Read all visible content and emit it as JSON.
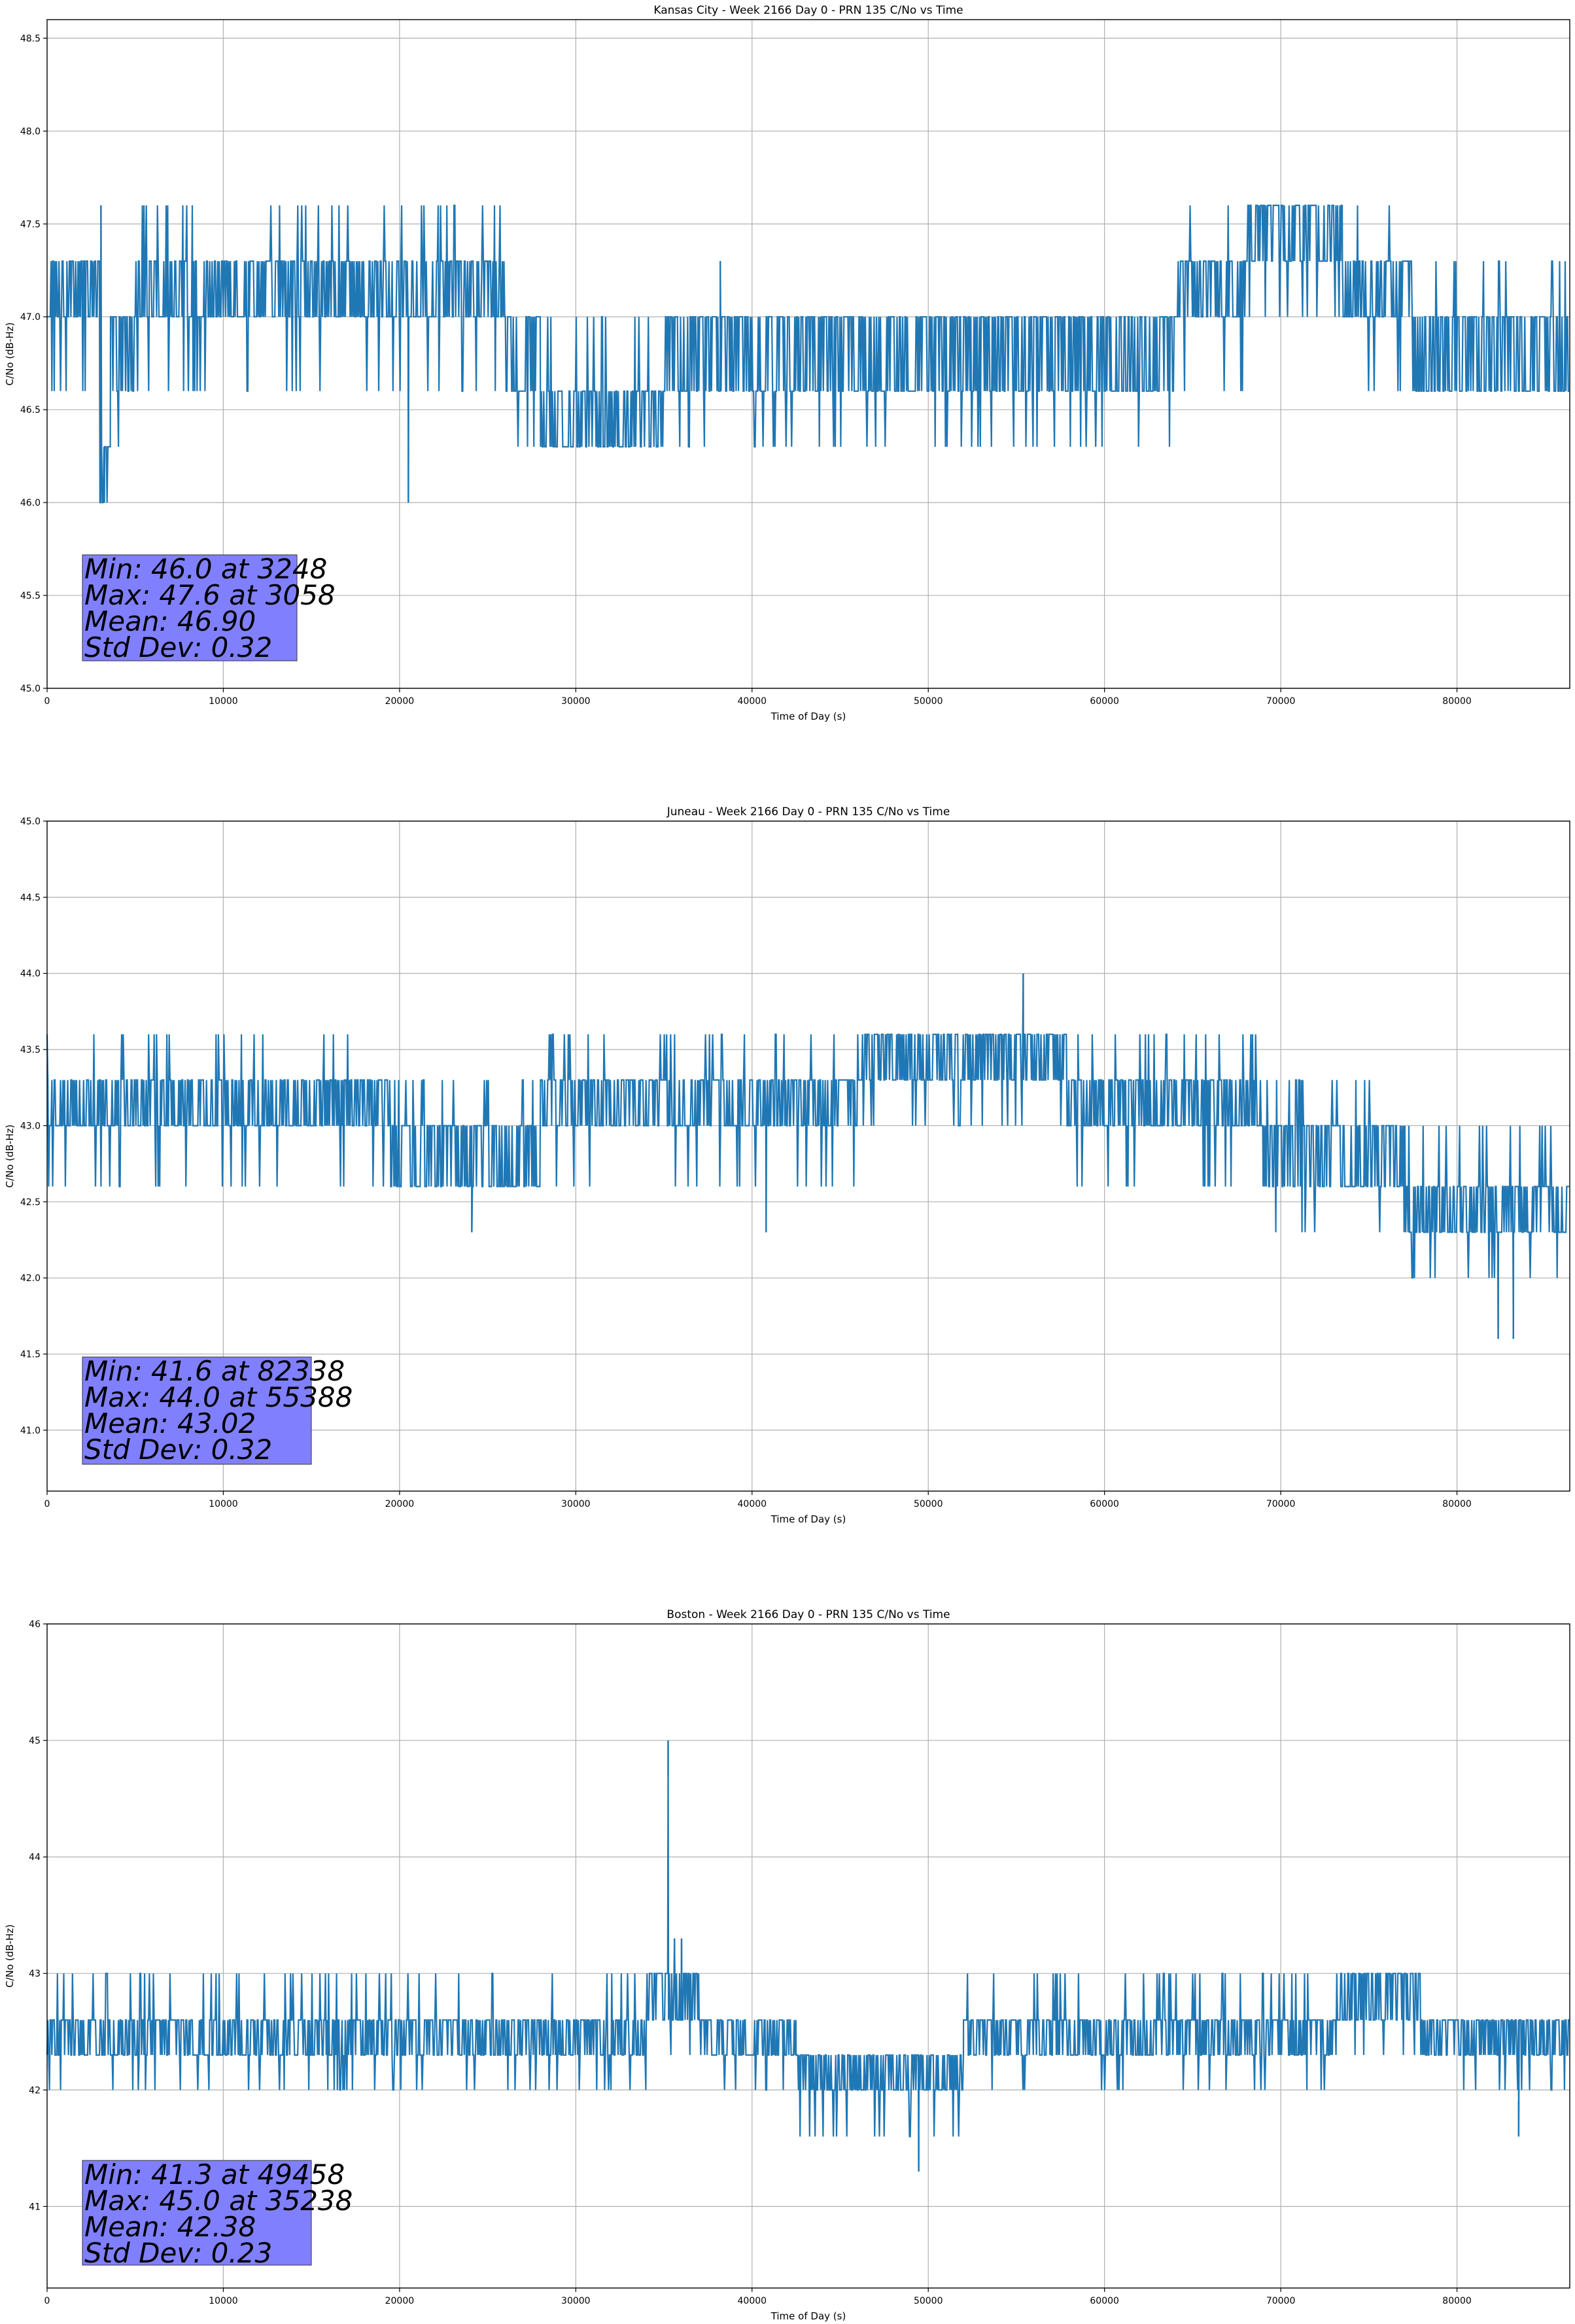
{
  "chart_data": [
    {
      "type": "line",
      "title": "Kansas City - Week 2166 Day 0 - PRN 135 C/No vs Time",
      "xlabel": "Time of Day (s)",
      "ylabel": "C/No (dB-Hz)",
      "xlim": [
        0,
        86400
      ],
      "ylim": [
        45.0,
        48.6
      ],
      "xticks": [
        0,
        10000,
        20000,
        30000,
        40000,
        50000,
        60000,
        70000,
        80000
      ],
      "xtick_labels": [
        "0",
        "10000",
        "20000",
        "30000",
        "40000",
        "50000",
        "60000",
        "70000",
        "80000"
      ],
      "yticks": [
        45.0,
        45.5,
        46.0,
        46.5,
        47.0,
        47.5,
        48.0,
        48.5
      ],
      "ytick_labels": [
        "45.0",
        "45.5",
        "46.0",
        "46.5",
        "47.0",
        "47.5",
        "48.0",
        "48.5"
      ],
      "grid": true,
      "series_color": "#1f77b4",
      "stats_box_color": "#8080ff",
      "stats": [
        "Min: 46.0 at 3248",
        "Max: 47.6 at 3058",
        "Mean: 46.90",
        "Std Dev: 0.32"
      ],
      "bands": [
        {
          "x": [
            0,
            3000
          ],
          "base": [
            47.0,
            47.3
          ],
          "lo": 46.6,
          "hi": 47.3
        },
        {
          "x": [
            3000,
            3600
          ],
          "base": [
            46.0,
            46.3
          ],
          "lo": 46.0,
          "hi": 46.6
        },
        {
          "x": [
            3600,
            5000
          ],
          "base": [
            46.6,
            47.0
          ],
          "lo": 46.3,
          "hi": 47.0
        },
        {
          "x": [
            5000,
            26000
          ],
          "base": [
            47.0,
            47.3
          ],
          "lo": 46.6,
          "hi": 47.6
        },
        {
          "x": [
            26000,
            28000
          ],
          "base": [
            46.6,
            47.0
          ],
          "lo": 46.3,
          "hi": 47.0
        },
        {
          "x": [
            28000,
            35000
          ],
          "base": [
            46.3,
            46.6
          ],
          "lo": 46.3,
          "hi": 47.0
        },
        {
          "x": [
            35000,
            55000
          ],
          "base": [
            46.6,
            47.0
          ],
          "lo": 46.3,
          "hi": 47.0
        },
        {
          "x": [
            55000,
            64000
          ],
          "base": [
            46.6,
            47.0
          ],
          "lo": 46.3,
          "hi": 47.0
        },
        {
          "x": [
            64000,
            68000
          ],
          "base": [
            47.0,
            47.3
          ],
          "lo": 46.6,
          "hi": 47.6
        },
        {
          "x": [
            68000,
            73500
          ],
          "base": [
            47.3,
            47.6
          ],
          "lo": 47.0,
          "hi": 47.6
        },
        {
          "x": [
            73500,
            77500
          ],
          "base": [
            47.0,
            47.3
          ],
          "lo": 46.6,
          "hi": 47.6
        },
        {
          "x": [
            77500,
            86400
          ],
          "base": [
            46.6,
            47.0
          ],
          "lo": 46.6,
          "hi": 47.3
        }
      ],
      "spikes": [
        {
          "x": 3058,
          "y": 47.6
        },
        {
          "x": 3248,
          "y": 46.0
        },
        {
          "x": 20500,
          "y": 46.0
        },
        {
          "x": 38200,
          "y": 47.3
        }
      ]
    },
    {
      "type": "line",
      "title": "Juneau - Week 2166 Day 0 - PRN 135 C/No vs Time",
      "xlabel": "Time of Day (s)",
      "ylabel": "C/No (dB-Hz)",
      "xlim": [
        0,
        86400
      ],
      "ylim": [
        40.6,
        45.0
      ],
      "xticks": [
        0,
        10000,
        20000,
        30000,
        40000,
        50000,
        60000,
        70000,
        80000
      ],
      "xtick_labels": [
        "0",
        "10000",
        "20000",
        "30000",
        "40000",
        "50000",
        "60000",
        "70000",
        "80000"
      ],
      "yticks": [
        41.0,
        41.5,
        42.0,
        42.5,
        43.0,
        43.5,
        44.0,
        44.5,
        45.0
      ],
      "ytick_labels": [
        "41.0",
        "41.5",
        "42.0",
        "42.5",
        "43.0",
        "43.5",
        "44.0",
        "44.5",
        "45.0"
      ],
      "grid": true,
      "series_color": "#1f77b4",
      "stats_box_color": "#8080ff",
      "stats": [
        "Min: 41.6 at 82338",
        "Max: 44.0 at 55388",
        "Mean: 43.02",
        "Std Dev: 0.32"
      ],
      "bands": [
        {
          "x": [
            0,
            19500
          ],
          "base": [
            43.0,
            43.3
          ],
          "lo": 42.6,
          "hi": 43.6
        },
        {
          "x": [
            19500,
            28000
          ],
          "base": [
            42.6,
            43.0
          ],
          "lo": 42.6,
          "hi": 43.3
        },
        {
          "x": [
            28000,
            46000
          ],
          "base": [
            43.0,
            43.3
          ],
          "lo": 42.6,
          "hi": 43.6
        },
        {
          "x": [
            46000,
            58000
          ],
          "base": [
            43.3,
            43.6
          ],
          "lo": 43.0,
          "hi": 43.6
        },
        {
          "x": [
            58000,
            69000
          ],
          "base": [
            43.0,
            43.3
          ],
          "lo": 42.6,
          "hi": 43.6
        },
        {
          "x": [
            69000,
            77000
          ],
          "base": [
            42.6,
            43.0
          ],
          "lo": 42.3,
          "hi": 43.3
        },
        {
          "x": [
            77000,
            86400
          ],
          "base": [
            42.3,
            42.6
          ],
          "lo": 42.0,
          "hi": 43.0
        }
      ],
      "spikes": [
        {
          "x": 24100,
          "y": 42.3
        },
        {
          "x": 40800,
          "y": 42.3
        },
        {
          "x": 55388,
          "y": 44.0
        },
        {
          "x": 82338,
          "y": 41.6
        },
        {
          "x": 83200,
          "y": 41.6
        }
      ]
    },
    {
      "type": "line",
      "title": "Boston - Week 2166 Day 0 - PRN 135 C/No vs Time",
      "xlabel": "Time of Day (s)",
      "ylabel": "C/No (dB-Hz)",
      "xlim": [
        0,
        86400
      ],
      "ylim": [
        40.3,
        46.0
      ],
      "xticks": [
        0,
        10000,
        20000,
        30000,
        40000,
        50000,
        60000,
        70000,
        80000
      ],
      "xtick_labels": [
        "0",
        "10000",
        "20000",
        "30000",
        "40000",
        "50000",
        "60000",
        "70000",
        "80000"
      ],
      "yticks": [
        41,
        42,
        43,
        44,
        45,
        46
      ],
      "ytick_labels": [
        "41",
        "42",
        "43",
        "44",
        "45",
        "46"
      ],
      "grid": true,
      "series_color": "#1f77b4",
      "stats_box_color": "#8080ff",
      "stats": [
        "Min: 41.3 at 49458",
        "Max: 45.0 at 35238",
        "Mean: 42.38",
        "Std Dev: 0.23"
      ],
      "bands": [
        {
          "x": [
            0,
            34000
          ],
          "base": [
            42.3,
            42.6
          ],
          "lo": 42.0,
          "hi": 43.0
        },
        {
          "x": [
            34000,
            37000
          ],
          "base": [
            42.6,
            43.0
          ],
          "lo": 42.3,
          "hi": 43.0
        },
        {
          "x": [
            37000,
            42500
          ],
          "base": [
            42.3,
            42.6
          ],
          "lo": 42.0,
          "hi": 42.6
        },
        {
          "x": [
            42500,
            52000
          ],
          "base": [
            42.0,
            42.3
          ],
          "lo": 41.6,
          "hi": 42.3
        },
        {
          "x": [
            52000,
            73000
          ],
          "base": [
            42.3,
            42.6
          ],
          "lo": 42.0,
          "hi": 43.0
        },
        {
          "x": [
            73000,
            78000
          ],
          "base": [
            42.6,
            43.0
          ],
          "lo": 42.3,
          "hi": 43.0
        },
        {
          "x": [
            78000,
            86400
          ],
          "base": [
            42.3,
            42.6
          ],
          "lo": 42.0,
          "hi": 42.6
        }
      ],
      "spikes": [
        {
          "x": 35238,
          "y": 45.0
        },
        {
          "x": 35600,
          "y": 43.3
        },
        {
          "x": 36000,
          "y": 43.3
        },
        {
          "x": 49458,
          "y": 41.3
        },
        {
          "x": 83500,
          "y": 41.6
        }
      ]
    }
  ]
}
